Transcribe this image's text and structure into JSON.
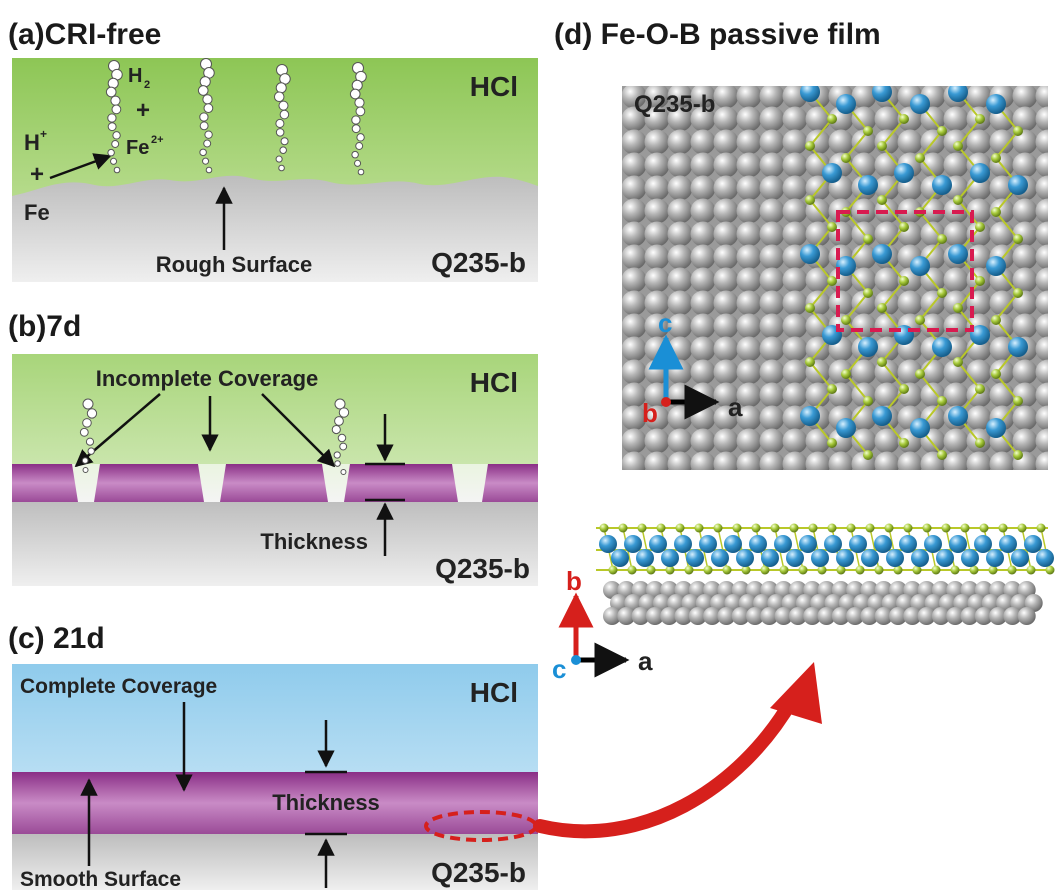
{
  "colors": {
    "hcl_green": "#9ccf5e",
    "hcl_blue": "#9fd2ef",
    "steel_gray": "#c4c4c4",
    "film_purple": "#9c3c96",
    "arrow_red": "#d6201c",
    "dashed_box": "#d81b50",
    "atom_fe": "#8f8f8f",
    "atom_o": "#2f8fc8",
    "atom_b": "#a6c93a",
    "bond": "#b9c828",
    "axis_c": "#1a8fd6",
    "axis_b": "#d6201c",
    "axis_a": "#000000"
  },
  "panel_a": {
    "title": "(a)CRI-free",
    "medium": "HCl",
    "substrate": "Q235-b",
    "surface_label": "Rough Surface",
    "reactant_h": "H",
    "reactant_h_charge": "+",
    "plus_sign": "+",
    "reactant_fe": "Fe",
    "product_h2": "H",
    "product_h2_sub": "2",
    "product_plus": "+",
    "product_fe": "Fe",
    "product_fe_charge": "2+"
  },
  "panel_b": {
    "title": "(b)7d",
    "medium": "HCl",
    "substrate": "Q235-b",
    "coverage_label": "Incomplete Coverage",
    "thickness_label": "Thickness"
  },
  "panel_c": {
    "title": "(c) 21d",
    "medium": "HCl",
    "substrate": "Q235-b",
    "coverage_label": "Complete Coverage",
    "thickness_label": "Thickness",
    "surface_label": "Smooth Surface"
  },
  "panel_d": {
    "title": "(d)  Fe-O-B passive film",
    "top_view_label": "Q235-b",
    "top_axes": {
      "vertical": "c",
      "horizontal": "a",
      "origin": "b"
    },
    "side_axes": {
      "vertical": "b",
      "horizontal": "a",
      "origin": "c"
    }
  }
}
